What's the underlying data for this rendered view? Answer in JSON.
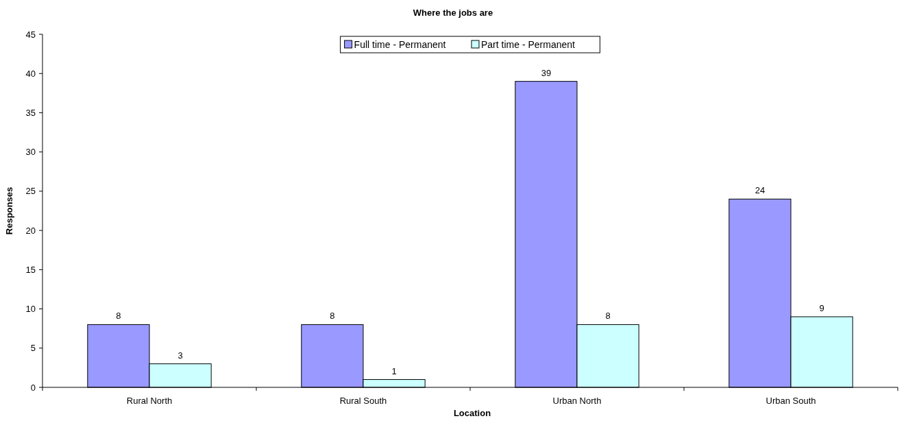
{
  "chart_data": {
    "type": "bar",
    "title": "Where the jobs are",
    "xlabel": "Location",
    "ylabel": "Responses",
    "categories": [
      "Rural North",
      "Rural South",
      "Urban North",
      "Urban South"
    ],
    "series": [
      {
        "name": "Full time - Permanent",
        "color": "#9999ff",
        "values": [
          8,
          8,
          39,
          24
        ]
      },
      {
        "name": "Part time - Permanent",
        "color": "#ccffff",
        "values": [
          3,
          1,
          8,
          9
        ]
      }
    ],
    "ylim": [
      0,
      45
    ],
    "yticks": [
      0,
      5,
      10,
      15,
      20,
      25,
      30,
      35,
      40,
      45
    ],
    "grid": false,
    "legend": "top",
    "data_labels": true
  }
}
